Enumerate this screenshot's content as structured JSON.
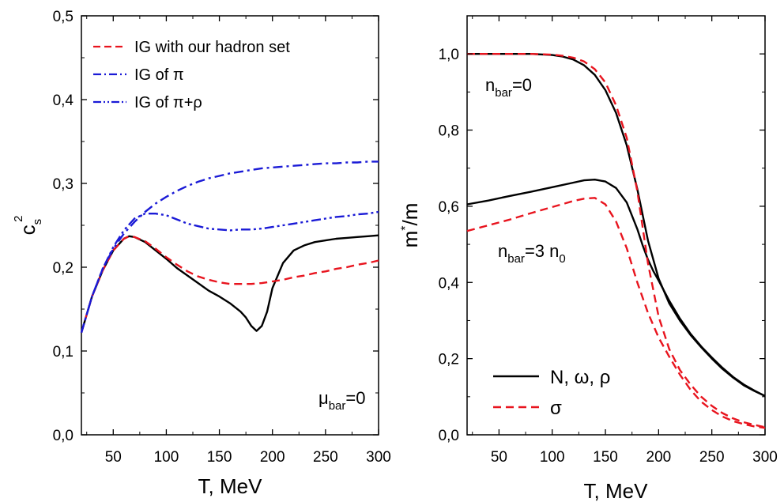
{
  "chart_data": [
    {
      "type": "line",
      "xlabel": "T, MeV",
      "ylabel": {
        "base": "c",
        "sub": "s",
        "sup": "2"
      },
      "xlim": [
        20,
        300
      ],
      "ylim": [
        0,
        0.5
      ],
      "x_ticks": [
        50,
        100,
        150,
        200,
        250,
        300
      ],
      "y_ticks": [
        0,
        0.1,
        0.2,
        0.3,
        0.4,
        0.5
      ],
      "y_tick_labels": [
        "0,0",
        "0,1",
        "0,2",
        "0,3",
        "0,4",
        "0,5"
      ],
      "grid": false,
      "legend_position": "top-left",
      "annotation": {
        "base": "μ",
        "sub": "bar",
        "tail": "=0"
      },
      "series": [
        {
          "name": "",
          "color": "#000000",
          "dash": "solid",
          "x": [
            20,
            30,
            40,
            50,
            60,
            65,
            70,
            80,
            90,
            100,
            110,
            120,
            130,
            140,
            150,
            160,
            170,
            175,
            180,
            185,
            190,
            195,
            200,
            210,
            220,
            230,
            240,
            250,
            260,
            270,
            280,
            290,
            300
          ],
          "y": [
            0.122,
            0.165,
            0.196,
            0.22,
            0.234,
            0.237,
            0.236,
            0.23,
            0.22,
            0.21,
            0.199,
            0.19,
            0.181,
            0.172,
            0.165,
            0.157,
            0.147,
            0.14,
            0.13,
            0.124,
            0.13,
            0.147,
            0.175,
            0.205,
            0.22,
            0.226,
            0.23,
            0.232,
            0.234,
            0.235,
            0.236,
            0.237,
            0.238
          ]
        },
        {
          "name": "IG with our hadron set",
          "color": "#e8141e",
          "dash": "dashed",
          "x": [
            20,
            30,
            40,
            50,
            60,
            65,
            70,
            80,
            90,
            100,
            110,
            120,
            130,
            140,
            150,
            160,
            170,
            180,
            190,
            200,
            210,
            220,
            230,
            240,
            250,
            260,
            270,
            280,
            290,
            300
          ],
          "y": [
            0.122,
            0.165,
            0.196,
            0.22,
            0.234,
            0.237,
            0.236,
            0.231,
            0.222,
            0.212,
            0.203,
            0.195,
            0.189,
            0.185,
            0.182,
            0.18,
            0.18,
            0.18,
            0.181,
            0.183,
            0.185,
            0.188,
            0.19,
            0.193,
            0.195,
            0.198,
            0.2,
            0.203,
            0.205,
            0.208
          ]
        },
        {
          "name": "IG of π",
          "color": "#1a1ad6",
          "dash": "dash-dot",
          "x": [
            20,
            30,
            40,
            50,
            60,
            70,
            80,
            90,
            100,
            110,
            120,
            130,
            140,
            150,
            160,
            170,
            180,
            190,
            200,
            210,
            220,
            230,
            240,
            250,
            260,
            270,
            280,
            290,
            300
          ],
          "y": [
            0.122,
            0.165,
            0.198,
            0.222,
            0.24,
            0.254,
            0.266,
            0.276,
            0.284,
            0.291,
            0.297,
            0.302,
            0.306,
            0.309,
            0.312,
            0.314,
            0.316,
            0.318,
            0.319,
            0.32,
            0.321,
            0.322,
            0.323,
            0.324,
            0.324,
            0.325,
            0.325,
            0.326,
            0.326
          ]
        },
        {
          "name": "IG of π+ρ",
          "color": "#1a1ad6",
          "dash": "dash-dot-dot",
          "x": [
            20,
            30,
            40,
            50,
            60,
            70,
            80,
            90,
            100,
            110,
            120,
            130,
            140,
            150,
            160,
            170,
            180,
            190,
            200,
            210,
            220,
            230,
            240,
            250,
            260,
            270,
            280,
            290,
            300
          ],
          "y": [
            0.122,
            0.165,
            0.198,
            0.224,
            0.244,
            0.258,
            0.264,
            0.264,
            0.262,
            0.257,
            0.252,
            0.249,
            0.246,
            0.245,
            0.244,
            0.245,
            0.245,
            0.246,
            0.248,
            0.25,
            0.252,
            0.254,
            0.256,
            0.258,
            0.26,
            0.261,
            0.263,
            0.264,
            0.266
          ]
        }
      ]
    },
    {
      "type": "line",
      "xlabel": "T, MeV",
      "ylabel": {
        "base": "m",
        "sup": "*",
        "tail": "/m"
      },
      "xlim": [
        20,
        300
      ],
      "ylim": [
        0,
        1.1
      ],
      "x_ticks": [
        50,
        100,
        150,
        200,
        250,
        300
      ],
      "y_ticks": [
        0,
        0.2,
        0.4,
        0.6,
        0.8,
        1.0
      ],
      "y_tick_labels": [
        "0,0",
        "0,2",
        "0,4",
        "0,6",
        "0,8",
        "1,0"
      ],
      "grid": false,
      "legend_position": "bottom-left",
      "annotations": [
        {
          "base": "n",
          "sub": "bar",
          "tail": "=0"
        },
        {
          "base": "n",
          "sub": "bar",
          "mid": "=3 n",
          "sub2": "0"
        }
      ],
      "series": [
        {
          "name": "N, ω, ρ",
          "color": "#000000",
          "dash": "solid",
          "x": [
            20,
            50,
            80,
            100,
            110,
            120,
            130,
            140,
            150,
            160,
            170,
            180,
            190,
            200,
            210,
            220,
            230,
            240,
            250,
            260,
            270,
            280,
            290,
            300
          ],
          "y": [
            1.0,
            1.0,
            1.0,
            0.997,
            0.993,
            0.985,
            0.97,
            0.945,
            0.905,
            0.845,
            0.76,
            0.645,
            0.51,
            0.41,
            0.345,
            0.3,
            0.262,
            0.23,
            0.2,
            0.173,
            0.15,
            0.13,
            0.115,
            0.102
          ]
        },
        {
          "name": "",
          "color": "#000000",
          "dash": "solid",
          "x": [
            20,
            40,
            60,
            80,
            100,
            120,
            130,
            140,
            150,
            160,
            170,
            180,
            185,
            190,
            195,
            200,
            210,
            220,
            230,
            240,
            250,
            260,
            270,
            280,
            290,
            300
          ],
          "y": [
            0.605,
            0.615,
            0.627,
            0.638,
            0.65,
            0.662,
            0.668,
            0.67,
            0.665,
            0.648,
            0.61,
            0.54,
            0.497,
            0.46,
            0.43,
            0.405,
            0.352,
            0.305,
            0.265,
            0.232,
            0.203,
            0.176,
            0.152,
            0.132,
            0.116,
            0.102
          ]
        },
        {
          "name": "σ",
          "color": "#e8141e",
          "dash": "dashed",
          "x": [
            20,
            50,
            80,
            100,
            110,
            120,
            130,
            140,
            150,
            160,
            170,
            180,
            190,
            200,
            210,
            220,
            230,
            240,
            250,
            260,
            270,
            280,
            290,
            300
          ],
          "y": [
            1.0,
            1.0,
            1.0,
            0.998,
            0.995,
            0.99,
            0.98,
            0.96,
            0.925,
            0.865,
            0.78,
            0.64,
            0.45,
            0.31,
            0.225,
            0.17,
            0.132,
            0.1,
            0.076,
            0.057,
            0.043,
            0.033,
            0.026,
            0.02
          ]
        },
        {
          "name": "",
          "color": "#e8141e",
          "dash": "dashed",
          "x": [
            20,
            40,
            60,
            80,
            100,
            120,
            130,
            140,
            150,
            160,
            170,
            180,
            190,
            200,
            210,
            220,
            230,
            240,
            250,
            260,
            270,
            280,
            290,
            300
          ],
          "y": [
            0.535,
            0.55,
            0.565,
            0.582,
            0.598,
            0.614,
            0.62,
            0.622,
            0.605,
            0.56,
            0.49,
            0.4,
            0.32,
            0.255,
            0.205,
            0.158,
            0.118,
            0.087,
            0.065,
            0.048,
            0.036,
            0.028,
            0.022,
            0.018
          ]
        }
      ]
    }
  ]
}
